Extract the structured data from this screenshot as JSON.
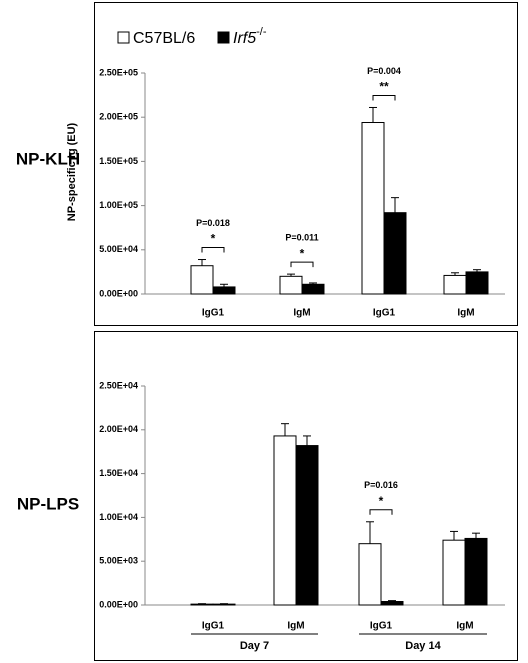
{
  "chart_data": [
    {
      "type": "bar",
      "panel_label": "NP-KLH",
      "ylabel": "NP-specific Ig (EU)",
      "categories": [
        "IgG1",
        "IgM",
        "IgG1",
        "IgM"
      ],
      "series": [
        {
          "name": "C57BL/6",
          "color": "#ffffff",
          "values": [
            32000,
            20000,
            194000,
            21000
          ],
          "errors": [
            7000,
            2500,
            17000,
            3000
          ]
        },
        {
          "name": "Irf5-/-",
          "color": "#000000",
          "values": [
            8000,
            11000,
            92000,
            25000
          ],
          "errors": [
            3000,
            1500,
            17000,
            2500
          ]
        }
      ],
      "ylim": [
        0,
        250000
      ],
      "yticks": [
        {
          "value": 0,
          "label": "0.00E+00"
        },
        {
          "value": 50000,
          "label": "5.00E+04"
        },
        {
          "value": 100000,
          "label": "1.00E+05"
        },
        {
          "value": 150000,
          "label": "1.50E+05"
        },
        {
          "value": 200000,
          "label": "2.00E+05"
        },
        {
          "value": 250000,
          "label": "2.50E+05"
        }
      ],
      "annotations": [
        {
          "p": "P=0.018",
          "stars": "*"
        },
        {
          "p": "P=0.011",
          "stars": "*"
        },
        {
          "p": "P=0.004",
          "stars": "**"
        }
      ]
    },
    {
      "type": "bar",
      "panel_label": "NP-LPS",
      "categories": [
        "IgG1",
        "IgM",
        "IgG1",
        "IgM"
      ],
      "groups": [
        "Day 7",
        "Day 14"
      ],
      "series": [
        {
          "color": "#ffffff",
          "values": [
            100,
            19300,
            7000,
            7400
          ],
          "errors": [
            50,
            1400,
            2500,
            1000
          ]
        },
        {
          "color": "#000000",
          "values": [
            100,
            18200,
            400,
            7600
          ],
          "errors": [
            50,
            1100,
            100,
            600
          ]
        }
      ],
      "ylim": [
        0,
        25000
      ],
      "yticks": [
        {
          "value": 0,
          "label": "0.00E+00"
        },
        {
          "value": 5000,
          "label": "5.00E+03"
        },
        {
          "value": 10000,
          "label": "1.00E+04"
        },
        {
          "value": 15000,
          "label": "1.50E+04"
        },
        {
          "value": 20000,
          "label": "2.00E+04"
        },
        {
          "value": 25000,
          "label": "2.50E+04"
        }
      ],
      "annotations": [
        {
          "p": "P=0.016",
          "stars": "*"
        }
      ]
    }
  ]
}
